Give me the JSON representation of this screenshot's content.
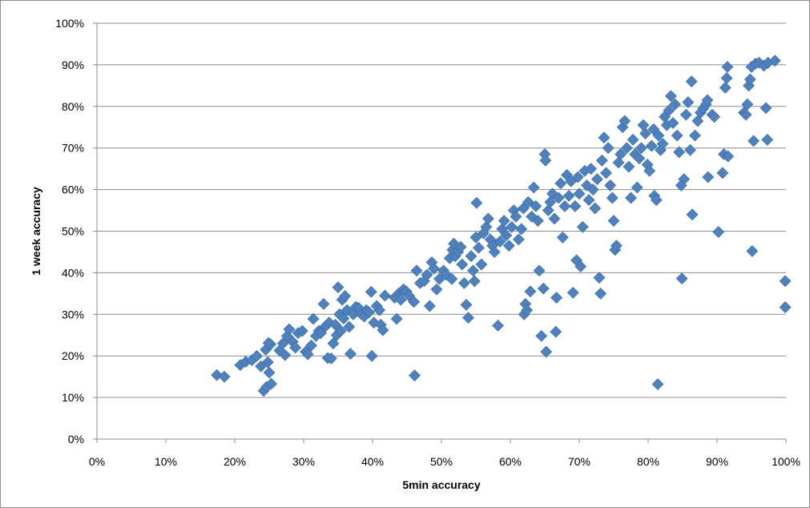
{
  "chart_data": {
    "type": "scatter",
    "title": "",
    "xlabel": "5min accuracy",
    "ylabel": "1 week accuracy",
    "xlim": [
      0,
      100
    ],
    "ylim": [
      0,
      100
    ],
    "x_ticks": [
      "0%",
      "10%",
      "20%",
      "30%",
      "40%",
      "50%",
      "60%",
      "70%",
      "80%",
      "90%",
      "100%"
    ],
    "y_ticks": [
      "0%",
      "10%",
      "20%",
      "30%",
      "40%",
      "50%",
      "60%",
      "70%",
      "80%",
      "90%",
      "100%"
    ],
    "grid": "horizontal",
    "legend": "none",
    "marker": "diamond",
    "marker_color": "#4f81bd",
    "marker_edge": "#3a6ca8",
    "series": [
      {
        "points": [
          [
            17.4,
            15.4
          ],
          [
            18.5,
            15.0
          ],
          [
            20.8,
            17.8
          ],
          [
            21.6,
            18.6
          ],
          [
            22.5,
            19.0
          ],
          [
            23.2,
            20.0
          ],
          [
            23.8,
            17.5
          ],
          [
            24.2,
            11.6
          ],
          [
            24.6,
            12.5
          ],
          [
            24.8,
            18.5
          ],
          [
            25.0,
            16.0
          ],
          [
            25.3,
            13.3
          ],
          [
            24.5,
            21.5
          ],
          [
            25.2,
            22.8
          ],
          [
            24.9,
            23.1
          ],
          [
            26.5,
            21.3
          ],
          [
            27.0,
            23.0
          ],
          [
            27.3,
            20.2
          ],
          [
            27.6,
            24.8
          ],
          [
            27.9,
            26.4
          ],
          [
            28.4,
            23.4
          ],
          [
            28.8,
            22.0
          ],
          [
            29.2,
            25.5
          ],
          [
            29.8,
            26.0
          ],
          [
            30.3,
            21.0
          ],
          [
            30.6,
            20.4
          ],
          [
            31.1,
            22.5
          ],
          [
            31.4,
            28.9
          ],
          [
            31.8,
            24.8
          ],
          [
            32.2,
            26.0
          ],
          [
            32.5,
            25.5
          ],
          [
            32.9,
            32.5
          ],
          [
            33.2,
            27.2
          ],
          [
            33.5,
            19.5
          ],
          [
            33.7,
            28.0
          ],
          [
            34.0,
            19.4
          ],
          [
            34.3,
            23.0
          ],
          [
            34.6,
            27.5
          ],
          [
            34.8,
            25.0
          ],
          [
            35.0,
            36.5
          ],
          [
            35.2,
            30.0
          ],
          [
            35.4,
            26.0
          ],
          [
            35.6,
            33.5
          ],
          [
            35.8,
            29.0
          ],
          [
            36.0,
            34.4
          ],
          [
            36.3,
            31.0
          ],
          [
            36.6,
            27.0
          ],
          [
            36.8,
            20.5
          ],
          [
            37.2,
            30.0
          ],
          [
            37.6,
            31.8
          ],
          [
            38.0,
            31.5
          ],
          [
            38.4,
            30.0
          ],
          [
            38.8,
            29.5
          ],
          [
            39.1,
            31.0
          ],
          [
            39.5,
            30.5
          ],
          [
            39.8,
            35.4
          ],
          [
            39.9,
            20.0
          ],
          [
            40.2,
            28.0
          ],
          [
            40.6,
            32.0
          ],
          [
            41.0,
            31.0
          ],
          [
            41.2,
            27.5
          ],
          [
            41.5,
            26.2
          ],
          [
            41.8,
            34.5
          ],
          [
            43.2,
            34.0
          ],
          [
            43.5,
            28.9
          ],
          [
            43.8,
            35.0
          ],
          [
            44.1,
            33.5
          ],
          [
            44.5,
            36.0
          ],
          [
            44.9,
            35.5
          ],
          [
            45.3,
            34.5
          ],
          [
            46.0,
            33.0
          ],
          [
            46.1,
            15.3
          ],
          [
            46.4,
            40.5
          ],
          [
            46.9,
            37.5
          ],
          [
            47.5,
            38.0
          ],
          [
            47.9,
            39.5
          ],
          [
            48.3,
            32.0
          ],
          [
            48.6,
            42.5
          ],
          [
            48.9,
            41.0
          ],
          [
            49.3,
            36.0
          ],
          [
            49.7,
            38.5
          ],
          [
            50.3,
            40.5
          ],
          [
            50.7,
            39.5
          ],
          [
            51.2,
            43.5
          ],
          [
            51.5,
            38.5
          ],
          [
            51.6,
            45.5
          ],
          [
            51.8,
            47.0
          ],
          [
            52.0,
            44.0
          ],
          [
            52.4,
            45.0
          ],
          [
            52.8,
            46.2
          ],
          [
            53.0,
            42.0
          ],
          [
            53.3,
            37.5
          ],
          [
            53.6,
            32.3
          ],
          [
            53.9,
            29.2
          ],
          [
            54.3,
            44.0
          ],
          [
            54.6,
            40.5
          ],
          [
            54.8,
            38.0
          ],
          [
            55.0,
            48.5
          ],
          [
            55.1,
            56.8
          ],
          [
            55.4,
            46.0
          ],
          [
            55.8,
            42.0
          ],
          [
            56.1,
            49.5
          ],
          [
            56.5,
            51.0
          ],
          [
            56.8,
            53.0
          ],
          [
            57.1,
            48.0
          ],
          [
            57.4,
            46.5
          ],
          [
            57.7,
            45.0
          ],
          [
            58.2,
            27.3
          ],
          [
            58.5,
            47.5
          ],
          [
            58.8,
            50.5
          ],
          [
            59.1,
            52.5
          ],
          [
            59.4,
            49.0
          ],
          [
            59.8,
            46.5
          ],
          [
            60.2,
            51.0
          ],
          [
            60.5,
            55.0
          ],
          [
            60.8,
            53.5
          ],
          [
            61.2,
            48.0
          ],
          [
            61.6,
            50.5
          ],
          [
            61.9,
            55.5
          ],
          [
            62.0,
            30.0
          ],
          [
            62.2,
            32.5
          ],
          [
            62.4,
            31.0
          ],
          [
            62.6,
            57.0
          ],
          [
            62.9,
            35.5
          ],
          [
            63.1,
            53.5
          ],
          [
            63.4,
            60.5
          ],
          [
            63.7,
            56.0
          ],
          [
            64.0,
            52.5
          ],
          [
            64.2,
            40.5
          ],
          [
            64.5,
            24.8
          ],
          [
            64.8,
            36.2
          ],
          [
            65.0,
            68.5
          ],
          [
            65.1,
            67.0
          ],
          [
            65.2,
            21.0
          ],
          [
            65.5,
            55.0
          ],
          [
            65.8,
            57.0
          ],
          [
            66.1,
            59.0
          ],
          [
            66.4,
            53.0
          ],
          [
            66.6,
            25.8
          ],
          [
            66.7,
            34.0
          ],
          [
            67.0,
            58.0
          ],
          [
            67.3,
            61.5
          ],
          [
            67.6,
            48.5
          ],
          [
            67.9,
            56.0
          ],
          [
            68.2,
            63.5
          ],
          [
            68.5,
            58.5
          ],
          [
            68.8,
            62.0
          ],
          [
            69.1,
            35.2
          ],
          [
            69.4,
            56.0
          ],
          [
            69.6,
            43.0
          ],
          [
            69.8,
            63.0
          ],
          [
            70.0,
            59.0
          ],
          [
            70.2,
            41.5
          ],
          [
            70.5,
            51.0
          ],
          [
            70.8,
            64.5
          ],
          [
            71.1,
            61.0
          ],
          [
            71.4,
            57.5
          ],
          [
            71.7,
            65.0
          ],
          [
            72.0,
            60.0
          ],
          [
            72.3,
            55.5
          ],
          [
            72.6,
            62.5
          ],
          [
            72.9,
            38.8
          ],
          [
            73.1,
            35.0
          ],
          [
            73.3,
            67.0
          ],
          [
            73.6,
            72.5
          ],
          [
            73.9,
            64.0
          ],
          [
            74.2,
            70.0
          ],
          [
            74.5,
            61.0
          ],
          [
            74.8,
            58.0
          ],
          [
            75.0,
            52.5
          ],
          [
            75.2,
            45.5
          ],
          [
            75.4,
            46.5
          ],
          [
            75.7,
            66.5
          ],
          [
            76.0,
            68.5
          ],
          [
            76.3,
            75.0
          ],
          [
            76.6,
            76.5
          ],
          [
            76.9,
            70.0
          ],
          [
            77.2,
            65.5
          ],
          [
            77.5,
            58.0
          ],
          [
            77.8,
            72.0
          ],
          [
            78.1,
            68.5
          ],
          [
            78.4,
            60.5
          ],
          [
            78.7,
            67.5
          ],
          [
            79.0,
            70.0
          ],
          [
            79.3,
            75.5
          ],
          [
            79.6,
            73.5
          ],
          [
            79.9,
            66.0
          ],
          [
            80.2,
            64.5
          ],
          [
            80.5,
            70.5
          ],
          [
            80.8,
            74.5
          ],
          [
            80.9,
            58.5
          ],
          [
            81.2,
            57.5
          ],
          [
            81.4,
            13.2
          ],
          [
            81.5,
            73.0
          ],
          [
            81.8,
            69.5
          ],
          [
            82.1,
            71.0
          ],
          [
            82.4,
            77.5
          ],
          [
            82.7,
            75.5
          ],
          [
            83.0,
            79.0
          ],
          [
            83.3,
            82.5
          ],
          [
            83.6,
            76.0
          ],
          [
            83.9,
            80.5
          ],
          [
            84.2,
            73.0
          ],
          [
            84.5,
            69.0
          ],
          [
            84.8,
            61.0
          ],
          [
            84.9,
            38.6
          ],
          [
            85.2,
            62.5
          ],
          [
            85.5,
            78.0
          ],
          [
            85.8,
            81.0
          ],
          [
            86.1,
            69.5
          ],
          [
            86.3,
            86.0
          ],
          [
            86.4,
            54.0
          ],
          [
            86.8,
            73.0
          ],
          [
            87.2,
            76.5
          ],
          [
            87.6,
            78.5
          ],
          [
            88.0,
            79.5
          ],
          [
            88.4,
            80.5
          ],
          [
            88.6,
            81.5
          ],
          [
            88.7,
            63.0
          ],
          [
            89.3,
            78.0
          ],
          [
            89.6,
            77.5
          ],
          [
            90.2,
            49.8
          ],
          [
            90.8,
            64.0
          ],
          [
            91.0,
            68.5
          ],
          [
            91.2,
            84.5
          ],
          [
            91.4,
            86.8
          ],
          [
            91.5,
            89.5
          ],
          [
            91.6,
            68.0
          ],
          [
            93.9,
            78.5
          ],
          [
            94.2,
            78.0
          ],
          [
            94.4,
            80.5
          ],
          [
            94.6,
            85.0
          ],
          [
            94.8,
            86.5
          ],
          [
            95.0,
            89.5
          ],
          [
            95.1,
            45.2
          ],
          [
            95.3,
            71.7
          ],
          [
            95.6,
            90.3
          ],
          [
            96.1,
            90.5
          ],
          [
            96.8,
            89.8
          ],
          [
            97.1,
            79.6
          ],
          [
            97.3,
            72.0
          ],
          [
            97.4,
            90.5
          ],
          [
            98.4,
            91.0
          ],
          [
            99.9,
            38.0
          ],
          [
            99.9,
            31.7
          ]
        ]
      }
    ]
  }
}
